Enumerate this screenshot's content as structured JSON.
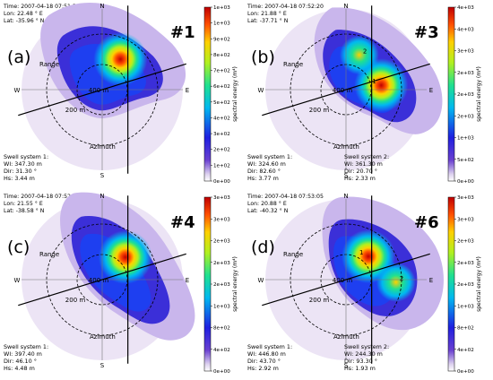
{
  "figure": {
    "colorbar_label": "spectral energy (m⁴)",
    "directions": {
      "n": "N",
      "s": "S",
      "e": "E",
      "w": "W"
    },
    "range_label": "Range",
    "azimuth_label": "Azimuth",
    "ring_labels": [
      "400 m",
      "200 m"
    ]
  },
  "chart_data": [
    {
      "type": "heatmap",
      "panel_label": "(a)",
      "imagette": "#1",
      "time": "Time: 2007-04-18 07:51:50",
      "lon": "Lon: 22.48 ° E",
      "lat": "Lat: -35.96 ° N",
      "colorbar": {
        "min": 0,
        "max": 1100,
        "ticks": [
          "0e+00",
          "1e+02",
          "2e+02",
          "3e+02",
          "4e+02",
          "5e+02",
          "6e+02",
          "7e+02",
          "8e+02",
          "9e+02",
          "1e+03",
          "1e+03"
        ]
      },
      "swell_systems": [
        {
          "title": "Swell system 1:",
          "wl": "Wl: 347.30 m",
          "dir": "Dir: 31.30 °",
          "hs": "Hs: 3.44 m"
        }
      ],
      "peaks": [
        {
          "label": "",
          "range_m": 110,
          "azimuth_deg": 31
        }
      ]
    },
    {
      "type": "heatmap",
      "panel_label": "(b)",
      "imagette": "#3",
      "time": "Time: 2007-04-18 07:52:20",
      "lon": "Lon: 21.88 ° E",
      "lat": "Lat: -37.71 ° N",
      "colorbar": {
        "min": 0,
        "max": 4000,
        "ticks": [
          "0e+00",
          "5e+02",
          "1e+03",
          "2e+03",
          "2e+03",
          "2e+03",
          "3e+03",
          "4e+03",
          "4e+03"
        ]
      },
      "swell_systems": [
        {
          "title": "Swell system 1:",
          "wl": "Wl: 324.60 m",
          "dir": "Dir: 82.60 °",
          "hs": "Hs: 3.77 m"
        },
        {
          "title": "Swell system 2:",
          "wl": "Wl: 361.30 m",
          "dir": "Dir: 20.70 °",
          "hs": "Hs: 2.33 m"
        }
      ],
      "peaks": [
        {
          "label": "1",
          "range_m": 110,
          "azimuth_deg": 83
        },
        {
          "label": "2",
          "range_m": 115,
          "azimuth_deg": 21
        }
      ]
    },
    {
      "type": "heatmap",
      "panel_label": "(c)",
      "imagette": "#4",
      "time": "Time: 2007-04-18 07:52:35",
      "lon": "Lon: 21.55 ° E",
      "lat": "Lat: -38.58 ° N",
      "colorbar": {
        "min": 0,
        "max": 3000,
        "ticks": [
          "0e+00",
          "4e+02",
          "8e+02",
          "1e+03",
          "2e+03",
          "2e+03",
          "2e+03",
          "3e+03",
          "3e+03"
        ]
      },
      "swell_systems": [
        {
          "title": "Swell system 1:",
          "wl": "Wl: 397.40 m",
          "dir": "Dir: 46.10 °",
          "hs": "Hs: 4.48 m"
        }
      ],
      "peaks": [
        {
          "label": "",
          "range_m": 100,
          "azimuth_deg": 46
        }
      ]
    },
    {
      "type": "heatmap",
      "panel_label": "(d)",
      "imagette": "#6",
      "time": "Time: 2007-04-18 07:53:05",
      "lon": "Lon: 20.88 ° E",
      "lat": "Lat: -40.32 ° N",
      "colorbar": {
        "min": 0,
        "max": 3200,
        "ticks": [
          "0e+00",
          "4e+02",
          "8e+02",
          "1e+03",
          "2e+03",
          "2e+03",
          "2e+03",
          "3e+03",
          "3e+03"
        ]
      },
      "swell_systems": [
        {
          "title": "Swell system 1:",
          "wl": "Wl: 446.80 m",
          "dir": "Dir: 43.70 °",
          "hs": "Hs: 2.92 m"
        },
        {
          "title": "Swell system 2:",
          "wl": "Wl: 244.30 m",
          "dir": "Dir: 93.30 °",
          "hs": "Hs: 1.93 m"
        }
      ],
      "peaks": [
        {
          "label": "1",
          "range_m": 100,
          "azimuth_deg": 44
        },
        {
          "label": "2",
          "range_m": 155,
          "azimuth_deg": 93
        }
      ]
    }
  ]
}
